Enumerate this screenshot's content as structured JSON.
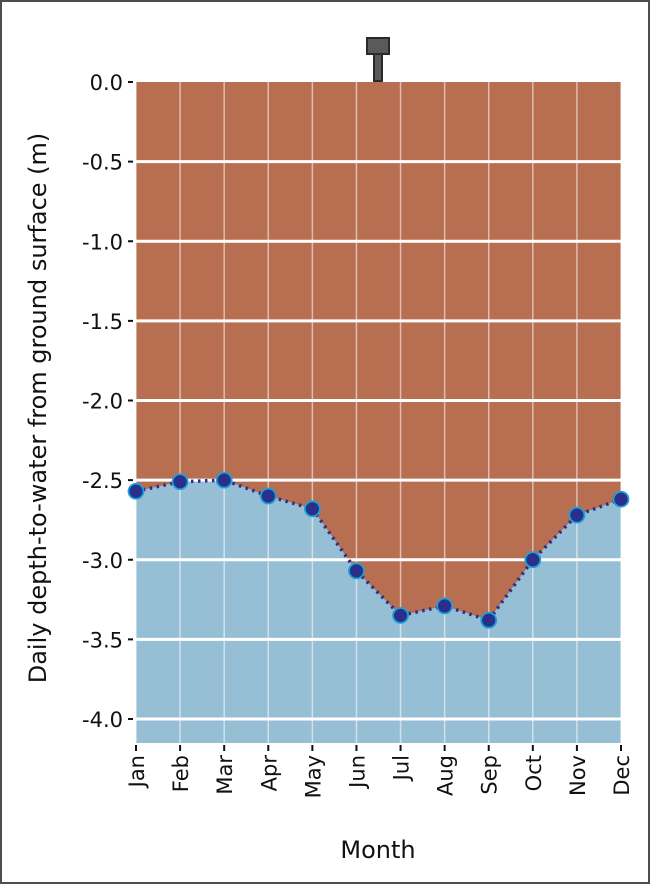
{
  "chart_data": {
    "type": "area",
    "title": "",
    "xlabel": "Month",
    "ylabel": "Daily depth-to-water from ground surface (m)",
    "categories": [
      "Jan",
      "Feb",
      "Mar",
      "Apr",
      "May",
      "Jun",
      "Jul",
      "Aug",
      "Sep",
      "Oct",
      "Nov",
      "Dec"
    ],
    "series": [
      {
        "name": "Depth to water",
        "values": [
          -2.57,
          -2.51,
          -2.5,
          -2.6,
          -2.68,
          -3.07,
          -3.35,
          -3.29,
          -3.38,
          -3.0,
          -2.72,
          -2.62
        ],
        "style": "dotted line with circle markers, area below filled"
      }
    ],
    "yticks": [
      "0.0",
      "-0.5",
      "-1.0",
      "-1.5",
      "-2.0",
      "-2.5",
      "-3.0",
      "-3.5",
      "-4.0"
    ],
    "ylim": [
      -4.15,
      0.0
    ],
    "grid": true,
    "legend": null,
    "annotations": [
      "well icon at top of plot (ground surface)"
    ]
  },
  "colors": {
    "soil": "#b86e50",
    "water": "#96bfd5",
    "grid": "#ffffff",
    "marker_fill": "#2b2f8c",
    "marker_edge": "#1aa1d6",
    "line": "#2b2f8c",
    "well_icon": "#5a5a5a",
    "frame": "#4d4d4d"
  },
  "icons": {
    "well": "well-pipe-icon"
  }
}
